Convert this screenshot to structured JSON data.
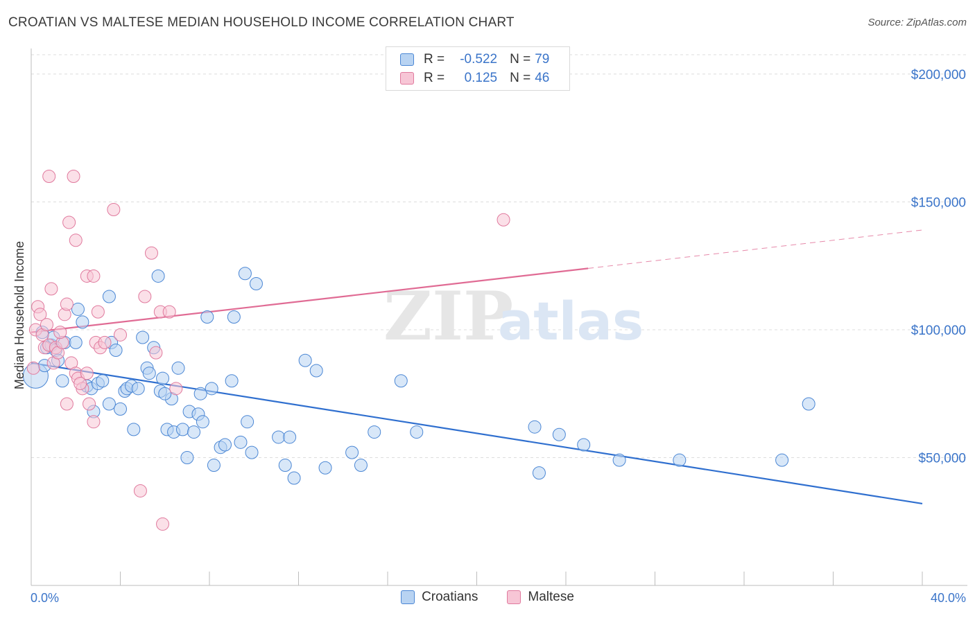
{
  "title": "CROATIAN VS MALTESE MEDIAN HOUSEHOLD INCOME CORRELATION CHART",
  "source": "Source: ZipAtlas.com",
  "watermark": {
    "part1": "ZIP",
    "part2": "atlas"
  },
  "legend": {
    "rows": [
      {
        "r_label": "R =",
        "r_value": "-0.522",
        "n_label": "N =",
        "n_value": "79"
      },
      {
        "r_label": "R =",
        "r_value": "0.125",
        "n_label": "N =",
        "n_value": "46"
      }
    ]
  },
  "colors": {
    "croatians_fill": "#b8d3f2",
    "croatians_stroke": "#4a86d4",
    "croatians_line": "#2f6fcf",
    "maltese_fill": "#f7c6d6",
    "maltese_stroke": "#e0799d",
    "maltese_line": "#e06b94",
    "grid": "#dcdcdc",
    "axis_text": "#3a74c9"
  },
  "chart_data": {
    "type": "scatter",
    "title": "CROATIAN VS MALTESE MEDIAN HOUSEHOLD INCOME CORRELATION CHART",
    "xlabel": "",
    "ylabel": "Median Household Income",
    "xlim": [
      0,
      40
    ],
    "ylim": [
      0,
      210000
    ],
    "x_tick_labels": [
      "0.0%",
      "40.0%"
    ],
    "y_ticks": [
      50000,
      100000,
      150000,
      200000
    ],
    "y_tick_labels": [
      "$50,000",
      "$100,000",
      "$150,000",
      "$200,000"
    ],
    "grid": true,
    "legend_position": "bottom",
    "series": [
      {
        "name": "Croatians",
        "r": -0.522,
        "n": 79,
        "trend": {
          "x": [
            0,
            40
          ],
          "y": [
            87000,
            32000
          ],
          "dashed_from": null
        },
        "points": [
          [
            0.2,
            82000
          ],
          [
            0.5,
            99000
          ],
          [
            0.7,
            93000
          ],
          [
            0.9,
            94000
          ],
          [
            1.1,
            92000
          ],
          [
            1.2,
            88000
          ],
          [
            1.5,
            95000
          ],
          [
            1.4,
            80000
          ],
          [
            2.1,
            108000
          ],
          [
            2.3,
            103000
          ],
          [
            2.5,
            78000
          ],
          [
            2.7,
            77000
          ],
          [
            2.8,
            68000
          ],
          [
            3.0,
            79000
          ],
          [
            3.2,
            80000
          ],
          [
            3.5,
            113000
          ],
          [
            3.5,
            71000
          ],
          [
            3.6,
            95000
          ],
          [
            3.8,
            92000
          ],
          [
            4.0,
            69000
          ],
          [
            4.2,
            76000
          ],
          [
            4.3,
            77000
          ],
          [
            4.5,
            78000
          ],
          [
            4.6,
            61000
          ],
          [
            4.8,
            77000
          ],
          [
            5.0,
            97000
          ],
          [
            5.2,
            85000
          ],
          [
            5.3,
            83000
          ],
          [
            5.5,
            93000
          ],
          [
            5.7,
            121000
          ],
          [
            5.8,
            76000
          ],
          [
            5.9,
            81000
          ],
          [
            6.1,
            61000
          ],
          [
            6.3,
            73000
          ],
          [
            6.4,
            60000
          ],
          [
            6.6,
            85000
          ],
          [
            6.8,
            61000
          ],
          [
            7.0,
            50000
          ],
          [
            7.1,
            68000
          ],
          [
            7.3,
            60000
          ],
          [
            7.5,
            67000
          ],
          [
            7.6,
            75000
          ],
          [
            7.7,
            64000
          ],
          [
            7.9,
            105000
          ],
          [
            8.1,
            77000
          ],
          [
            8.2,
            47000
          ],
          [
            8.5,
            54000
          ],
          [
            8.7,
            55000
          ],
          [
            9.0,
            80000
          ],
          [
            9.1,
            105000
          ],
          [
            9.4,
            56000
          ],
          [
            9.6,
            122000
          ],
          [
            9.7,
            64000
          ],
          [
            9.9,
            52000
          ],
          [
            10.1,
            118000
          ],
          [
            11.1,
            58000
          ],
          [
            11.4,
            47000
          ],
          [
            11.6,
            58000
          ],
          [
            11.8,
            42000
          ],
          [
            12.3,
            88000
          ],
          [
            12.8,
            84000
          ],
          [
            13.2,
            46000
          ],
          [
            14.4,
            52000
          ],
          [
            14.8,
            47000
          ],
          [
            15.4,
            60000
          ],
          [
            16.6,
            80000
          ],
          [
            17.3,
            60000
          ],
          [
            22.6,
            62000
          ],
          [
            22.8,
            44000
          ],
          [
            23.7,
            59000
          ],
          [
            24.8,
            55000
          ],
          [
            26.4,
            49000
          ],
          [
            29.1,
            49000
          ],
          [
            33.7,
            49000
          ],
          [
            34.9,
            71000
          ],
          [
            1.0,
            97000
          ],
          [
            2.0,
            95000
          ],
          [
            0.6,
            86000
          ],
          [
            6.0,
            75000
          ]
        ]
      },
      {
        "name": "Maltese",
        "r": 0.125,
        "n": 46,
        "trend": {
          "x": [
            0,
            40
          ],
          "y": [
            99000,
            139000
          ],
          "dashed_from": 25
        },
        "points": [
          [
            0.1,
            85000
          ],
          [
            0.2,
            100000
          ],
          [
            0.3,
            109000
          ],
          [
            0.4,
            106000
          ],
          [
            0.5,
            98000
          ],
          [
            0.6,
            93000
          ],
          [
            0.7,
            102000
          ],
          [
            0.8,
            94000
          ],
          [
            0.9,
            116000
          ],
          [
            0.8,
            160000
          ],
          [
            1.0,
            87000
          ],
          [
            1.1,
            93000
          ],
          [
            1.2,
            91000
          ],
          [
            1.4,
            95000
          ],
          [
            1.5,
            106000
          ],
          [
            1.6,
            71000
          ],
          [
            1.6,
            110000
          ],
          [
            1.7,
            142000
          ],
          [
            1.8,
            87000
          ],
          [
            1.9,
            160000
          ],
          [
            2.0,
            135000
          ],
          [
            2.0,
            83000
          ],
          [
            2.1,
            81000
          ],
          [
            2.3,
            77000
          ],
          [
            2.5,
            83000
          ],
          [
            2.5,
            121000
          ],
          [
            2.6,
            71000
          ],
          [
            2.8,
            64000
          ],
          [
            2.8,
            121000
          ],
          [
            2.9,
            95000
          ],
          [
            3.0,
            107000
          ],
          [
            3.1,
            93000
          ],
          [
            3.3,
            95000
          ],
          [
            3.7,
            147000
          ],
          [
            4.0,
            98000
          ],
          [
            4.9,
            37000
          ],
          [
            5.1,
            113000
          ],
          [
            5.4,
            130000
          ],
          [
            5.6,
            91000
          ],
          [
            5.8,
            107000
          ],
          [
            5.9,
            24000
          ],
          [
            6.2,
            107000
          ],
          [
            6.5,
            77000
          ],
          [
            21.2,
            143000
          ],
          [
            1.3,
            99000
          ],
          [
            2.2,
            79000
          ]
        ]
      }
    ]
  }
}
